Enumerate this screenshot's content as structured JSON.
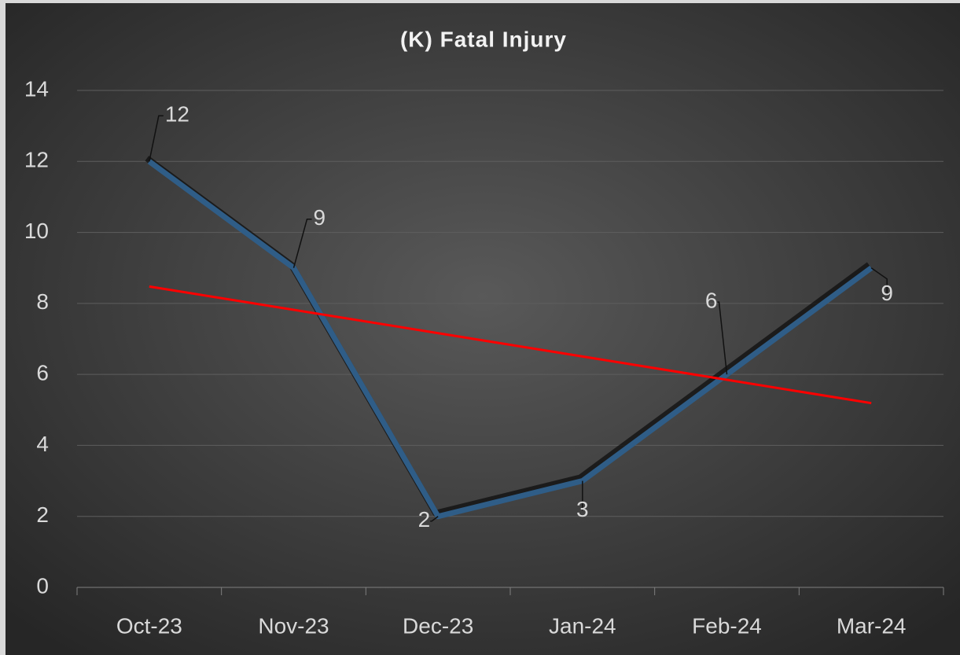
{
  "chart_data": {
    "type": "line",
    "title": "(K) Fatal Injury",
    "categories": [
      "Oct-23",
      "Nov-23",
      "Dec-23",
      "Jan-24",
      "Feb-24",
      "Mar-24"
    ],
    "series": [
      {
        "values": [
          12,
          9,
          2,
          3,
          6,
          9
        ],
        "color": "#2f5d87"
      }
    ],
    "ylim": [
      0,
      14
    ],
    "yticks": [
      0,
      2,
      4,
      6,
      8,
      10,
      12,
      14
    ],
    "grid": true,
    "trendline": {
      "kind": "linear",
      "color": "#ff0000"
    }
  }
}
